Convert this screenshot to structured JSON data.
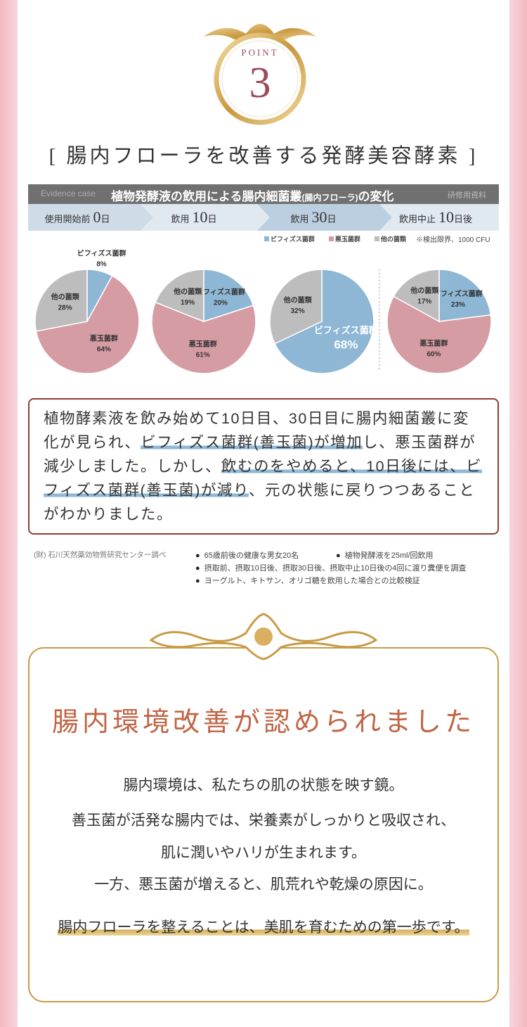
{
  "point": {
    "label": "POINT",
    "number": "3"
  },
  "heading": "[ 腸内フローラを改善する発酵美容酵素 ]",
  "study": {
    "tag": "Evidence case",
    "title": "植物発酵液の飲用による腸内細菌叢",
    "title_note": "(腸内フローラ)",
    "title_end": "の変化",
    "source_tag": "研修用資料"
  },
  "stages": [
    {
      "label": "使用開始前",
      "num": "0",
      "unit": "日"
    },
    {
      "label": "飲用",
      "num": "10",
      "unit": "日"
    },
    {
      "label": "飲用",
      "num": "30",
      "unit": "日"
    },
    {
      "label": "飲用中止",
      "num": "10",
      "unit": "日後"
    }
  ],
  "legend": [
    {
      "name": "ビフィズス菌群",
      "color": "#8db7d5"
    },
    {
      "name": "悪玉菌群",
      "color": "#d69ca3"
    },
    {
      "name": "他の菌類",
      "color": "#bdbdbd"
    }
  ],
  "limit_note": "※検出限界、1000 CFU",
  "chart_data": [
    {
      "type": "pie",
      "categories": [
        "ビフィズス菌群",
        "悪玉菌群",
        "他の菌類"
      ],
      "values": [
        8,
        64,
        28
      ],
      "value_labels": [
        "8%",
        "64%",
        "28%"
      ],
      "colors": [
        "#8db7d5",
        "#d69ca3",
        "#bdbdbd"
      ]
    },
    {
      "type": "pie",
      "categories": [
        "ビフィズス菌群",
        "悪玉菌群",
        "他の菌類"
      ],
      "values": [
        20,
        61,
        19
      ],
      "value_labels": [
        "20%",
        "61%",
        "19%"
      ],
      "colors": [
        "#8db7d5",
        "#d69ca3",
        "#bdbdbd"
      ]
    },
    {
      "type": "pie",
      "categories": [
        "ビフィズス菌群",
        "他の菌類"
      ],
      "values": [
        68,
        32
      ],
      "value_labels": [
        "68%",
        "32%"
      ],
      "colors": [
        "#8db7d5",
        "#bdbdbd"
      ]
    },
    {
      "type": "pie",
      "categories": [
        "ビフィズス菌群",
        "悪玉菌群",
        "他の菌類"
      ],
      "values": [
        23,
        60,
        17
      ],
      "value_labels": [
        "23%",
        "60%",
        "17%"
      ],
      "colors": [
        "#8db7d5",
        "#d69ca3",
        "#bdbdbd"
      ]
    }
  ],
  "summary": [
    "植物酵素液を飲み始めて10日目、30日目に腸内細菌叢に変化が見られ、",
    "ビフィズス菌群(善玉菌)が増加",
    "し、悪玉菌群が減少しました。しかし、",
    "飲むのをやめると、10日後には、ビフィズス菌群(善玉菌)が減り",
    "、元の状態に戻りつつあることがわかりました。"
  ],
  "source": "(財) 石川天然薬効物質研究センター調べ",
  "conditions": [
    "65歳前後の健康な男女20名",
    "植物発酵液を25ml/回飲用",
    "摂取前、摂取10日後、摂取30日後、摂取中止10日後の4回に渡り糞便を調査",
    "ヨーグルト、キトサン、オリゴ糖を飲用した場合との比較検証"
  ],
  "result": {
    "title": "腸内環境改善が認められました",
    "lines": [
      "腸内環境は、私たちの肌の状態を映す鏡。",
      "善玉菌が活発な腸内では、栄養素がしっかりと吸収され、",
      "肌に潤いやハリが生まれます。",
      "一方、悪玉菌が増えると、肌荒れや乾燥の原因に。"
    ],
    "conclusion": "腸内フローラを整えることは、美肌を育むための第一歩です。"
  }
}
